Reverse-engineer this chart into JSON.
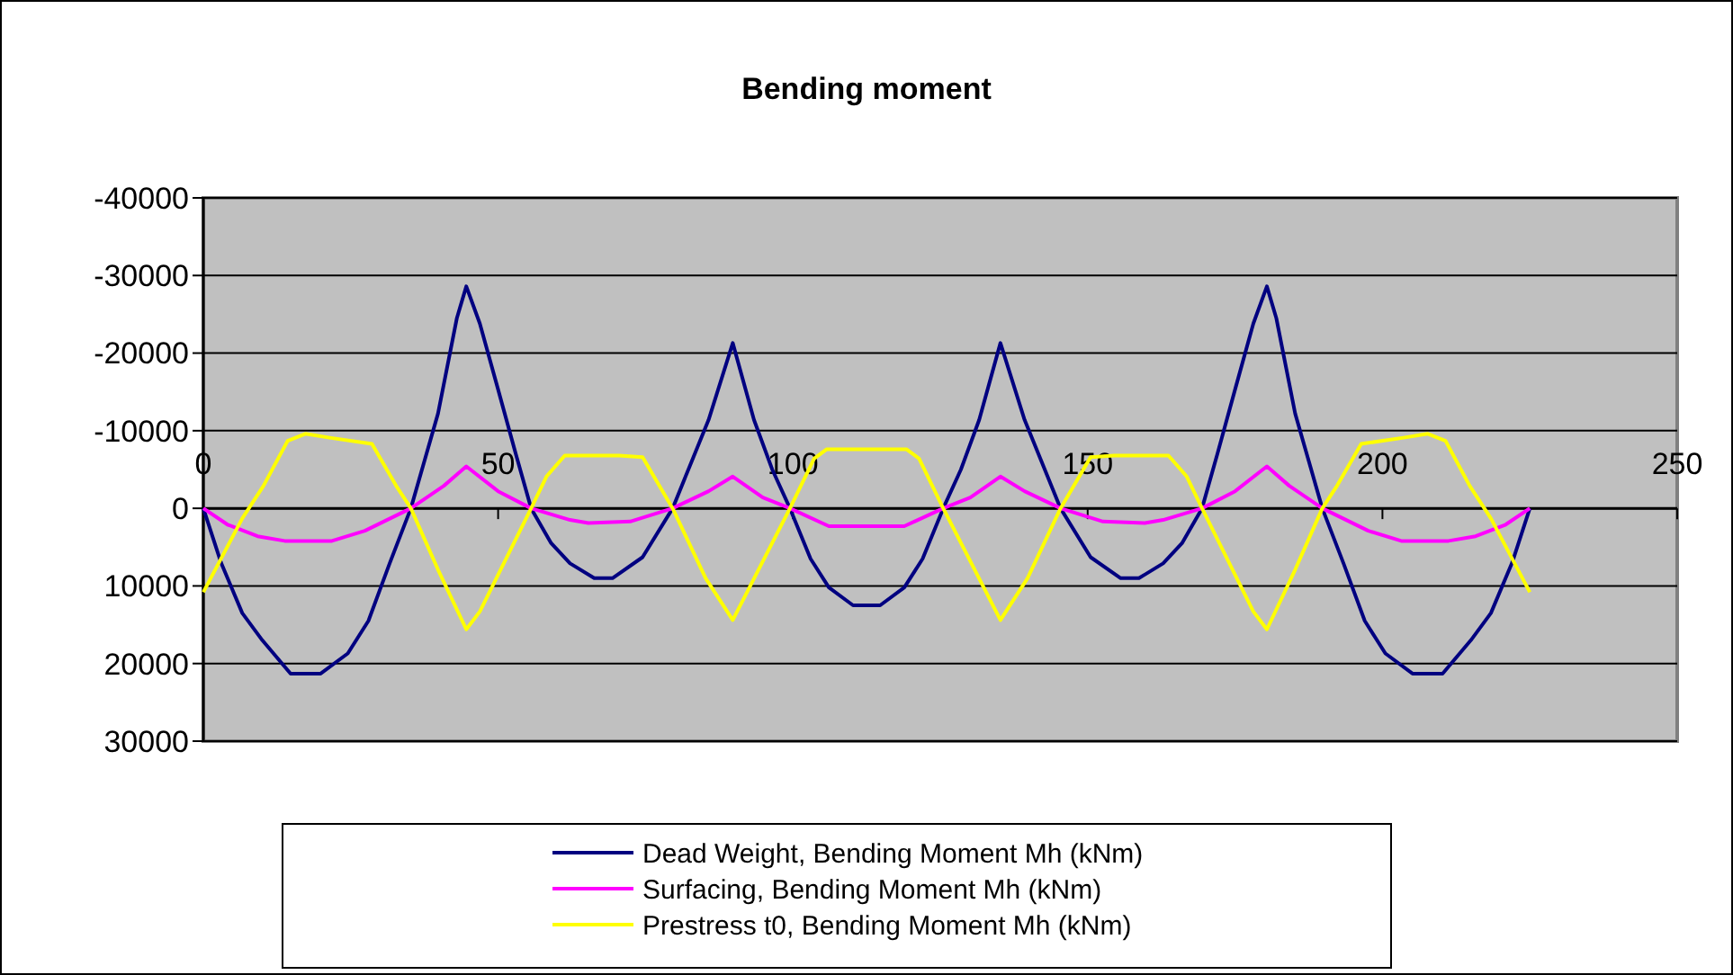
{
  "chart_data": {
    "type": "line",
    "title": "Bending moment",
    "xlim": [
      0,
      250
    ],
    "xticks": [
      0,
      50,
      100,
      150,
      200,
      250
    ],
    "ylim": [
      30000,
      -40000
    ],
    "yticks": [
      -40000,
      -30000,
      -20000,
      -10000,
      0,
      10000,
      20000,
      30000
    ],
    "grid": "y",
    "legend": "bottom",
    "line_style": "solid",
    "series": [
      {
        "name": "Dead Weight, Bending Moment Mh (kNm)",
        "color": "#000080",
        "x": [
          0,
          3,
          6.6,
          10,
          14.8,
          19.9,
          24.5,
          28,
          31.6,
          35.2,
          39.8,
          43,
          44.6,
          46.9,
          50,
          53,
          55.6,
          59,
          62.2,
          66.3,
          69.4,
          74.5,
          79.6,
          85.7,
          89.8,
          93.4,
          96.5,
          99.5,
          103,
          106.1,
          110.2,
          114.8,
          118.9,
          122,
          125.5,
          128.5,
          131.6,
          135.2,
          139.3,
          145.4,
          150.5,
          155.6,
          158.7,
          162.8,
          166,
          169.4,
          172,
          175,
          178.1,
          180.4,
          182,
          185.2,
          189.8,
          193.4,
          197,
          200.5,
          205.1,
          210.2,
          215,
          218.4,
          222,
          225
        ],
        "values": [
          0,
          7000,
          13500,
          17000,
          21300,
          21300,
          18700,
          14500,
          7100,
          0,
          -12200,
          -24500,
          -28600,
          -23800,
          -15300,
          -7000,
          0,
          4500,
          7100,
          9000,
          9000,
          6300,
          0,
          -11400,
          -21300,
          -11400,
          -5000,
          0,
          6500,
          10200,
          12500,
          12500,
          10200,
          6500,
          0,
          -5000,
          -11400,
          -21300,
          -11400,
          0,
          6300,
          9000,
          9000,
          7100,
          4500,
          0,
          -7000,
          -15300,
          -23800,
          -28600,
          -24500,
          -12200,
          0,
          7100,
          14500,
          18700,
          21300,
          21300,
          17000,
          13500,
          7000,
          0
        ]
      },
      {
        "name": "Surfacing, Bending Moment Mh (kNm)",
        "color": "#ff00ff",
        "x": [
          0,
          4.1,
          9.2,
          13.8,
          21.8,
          27.4,
          35.2,
          40.8,
          44.6,
          50,
          55.6,
          62.2,
          65.3,
          72.4,
          79.6,
          85.7,
          89.8,
          94.9,
          99.5,
          106.1,
          118.9,
          125.5,
          130.1,
          135.2,
          139.3,
          145.4,
          152.6,
          159.7,
          162.8,
          169.4,
          175,
          180.4,
          184.2,
          189.8,
          197.6,
          203.2,
          211.2,
          215.8,
          220.9,
          225
        ],
        "values": [
          0,
          2100,
          3600,
          4200,
          4200,
          2900,
          0,
          -2900,
          -5400,
          -2200,
          0,
          1500,
          1900,
          1700,
          0,
          -2200,
          -4100,
          -1400,
          0,
          2300,
          2300,
          0,
          -1400,
          -4100,
          -2200,
          0,
          1700,
          1900,
          1500,
          0,
          -2200,
          -5400,
          -2900,
          0,
          2900,
          4200,
          4200,
          3600,
          2100,
          0
        ]
      },
      {
        "name": "Prestress t0, Bending Moment Mh (kNm)",
        "color": "#ffff00",
        "x": [
          0,
          6.6,
          10.2,
          14.3,
          17.3,
          21.4,
          28.6,
          32.7,
          35.2,
          39.8,
          44.6,
          46.9,
          55.6,
          58.2,
          61.3,
          70.5,
          74.5,
          79.6,
          85.2,
          89.8,
          99.5,
          103.6,
          105.7,
          119.3,
          121.4,
          125.5,
          135.2,
          139.8,
          145.4,
          150.5,
          154.5,
          163.7,
          166.8,
          169.4,
          178.1,
          180.4,
          185.2,
          189.8,
          192.3,
          196.4,
          203.6,
          207.7,
          210.7,
          214.8,
          218.4,
          225
        ],
        "values": [
          10800,
          1300,
          -2900,
          -8700,
          -9600,
          -9100,
          -8300,
          -2900,
          0,
          7900,
          15600,
          13300,
          0,
          -4100,
          -6800,
          -6800,
          -6600,
          0,
          9000,
          14400,
          0,
          -6400,
          -7600,
          -7600,
          -6400,
          0,
          14400,
          9000,
          0,
          -6600,
          -6800,
          -6800,
          -4100,
          0,
          13300,
          15600,
          7900,
          0,
          -2900,
          -8300,
          -9100,
          -9600,
          -8700,
          -2900,
          1300,
          10800
        ]
      }
    ]
  }
}
